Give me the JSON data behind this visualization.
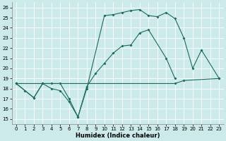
{
  "xlabel": "Humidex (Indice chaleur)",
  "xlim": [
    -0.5,
    23.5
  ],
  "ylim": [
    14.5,
    26.5
  ],
  "xticks": [
    0,
    1,
    2,
    3,
    4,
    5,
    6,
    7,
    8,
    9,
    10,
    11,
    12,
    13,
    14,
    15,
    16,
    17,
    18,
    19,
    20,
    21,
    22,
    23
  ],
  "yticks": [
    15,
    16,
    17,
    18,
    19,
    20,
    21,
    22,
    23,
    24,
    25,
    26
  ],
  "bg_color": "#cceaea",
  "grid_color": "#b0d8d8",
  "line_color": "#1a6b5a",
  "line1_x": [
    0,
    1,
    2,
    3,
    4,
    5,
    6,
    7,
    8,
    10,
    11,
    12,
    13,
    14,
    15,
    16,
    17,
    18,
    19,
    20,
    21,
    23
  ],
  "line1_y": [
    18.5,
    17.8,
    17.1,
    18.5,
    18.0,
    17.8,
    16.7,
    15.2,
    18.0,
    25.2,
    25.3,
    25.5,
    25.7,
    25.8,
    25.2,
    25.1,
    25.5,
    24.9,
    23.0,
    20.0,
    21.8,
    19.0
  ],
  "line2_x": [
    0,
    2,
    3,
    4,
    5,
    6,
    7,
    8,
    9,
    10,
    11,
    12,
    13,
    14,
    15,
    17,
    18
  ],
  "line2_y": [
    18.5,
    17.1,
    18.5,
    18.5,
    18.5,
    17.0,
    15.2,
    18.2,
    19.5,
    20.5,
    21.5,
    22.2,
    22.3,
    23.5,
    23.8,
    21.0,
    19.0
  ],
  "line3_x": [
    0,
    18,
    19,
    23
  ],
  "line3_y": [
    18.5,
    18.5,
    18.8,
    19.0
  ]
}
